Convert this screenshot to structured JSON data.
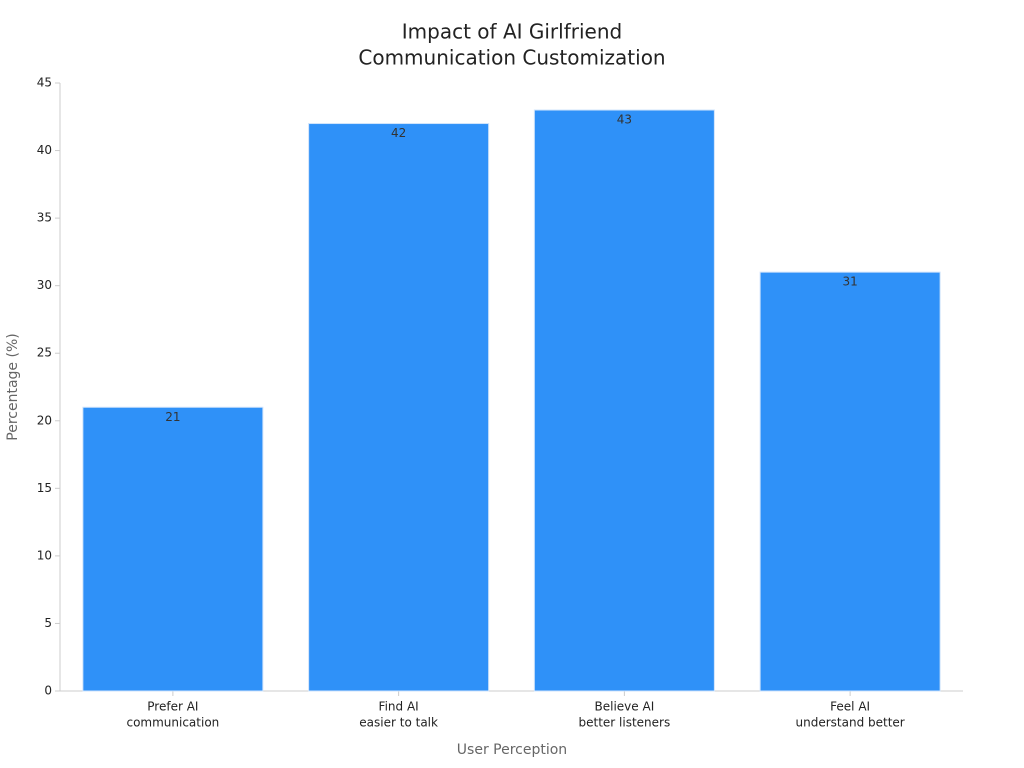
{
  "chart_data": {
    "type": "bar",
    "title": [
      "Impact of AI Girlfriend",
      "Communication Customization"
    ],
    "xlabel": "User Perception",
    "ylabel": "Percentage (%)",
    "categories": [
      [
        "Prefer AI",
        "communication"
      ],
      [
        "Find AI",
        "easier to talk"
      ],
      [
        "Believe AI",
        "better listeners"
      ],
      [
        "Feel AI",
        "understand better"
      ]
    ],
    "values": [
      21,
      42,
      43,
      31
    ],
    "color": "#2f91f8",
    "ylim": [
      0,
      45
    ],
    "yticks": [
      0,
      5,
      10,
      15,
      20,
      25,
      30,
      35,
      40,
      45
    ],
    "grid": false
  }
}
